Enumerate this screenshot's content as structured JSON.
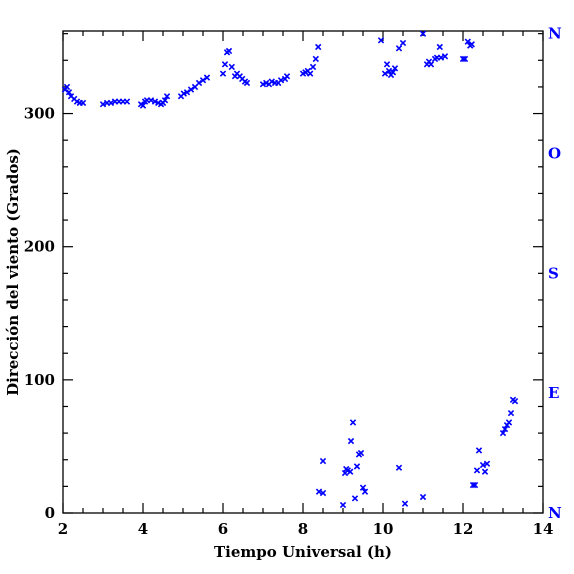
{
  "chart_data": {
    "type": "scatter",
    "xlabel": "Tiempo Universal (h)",
    "ylabel": "Dirección del viento (Grados)",
    "xlim": [
      2,
      14
    ],
    "ylim": [
      0,
      362
    ],
    "x_ticks": [
      2,
      4,
      6,
      8,
      10,
      12,
      14
    ],
    "y_ticks": [
      0,
      100,
      200,
      300
    ],
    "grid": false,
    "marker": "x",
    "marker_color": "#0000ff",
    "compass_axis": {
      "side": "right",
      "color": "#0000ff",
      "labels": [
        {
          "value": 0,
          "label": "N"
        },
        {
          "value": 90,
          "label": "E"
        },
        {
          "value": 180,
          "label": "S"
        },
        {
          "value": 270,
          "label": "O"
        },
        {
          "value": 360,
          "label": "N"
        }
      ]
    },
    "points": [
      [
        2.05,
        318
      ],
      [
        2.1,
        320
      ],
      [
        2.15,
        316
      ],
      [
        2.2,
        313
      ],
      [
        2.28,
        311
      ],
      [
        2.35,
        309
      ],
      [
        2.42,
        308
      ],
      [
        2.5,
        308
      ],
      [
        3.0,
        307
      ],
      [
        3.1,
        308
      ],
      [
        3.2,
        308
      ],
      [
        3.3,
        309
      ],
      [
        3.4,
        309
      ],
      [
        3.5,
        309
      ],
      [
        3.6,
        309
      ],
      [
        3.95,
        307
      ],
      [
        4.0,
        306
      ],
      [
        4.05,
        309
      ],
      [
        4.1,
        310
      ],
      [
        4.2,
        310
      ],
      [
        4.3,
        309
      ],
      [
        4.38,
        308
      ],
      [
        4.45,
        307
      ],
      [
        4.5,
        308
      ],
      [
        4.55,
        310
      ],
      [
        4.6,
        313
      ],
      [
        4.95,
        313
      ],
      [
        5.02,
        315
      ],
      [
        5.1,
        316
      ],
      [
        5.2,
        318
      ],
      [
        5.3,
        320
      ],
      [
        5.4,
        323
      ],
      [
        5.5,
        325
      ],
      [
        5.6,
        327
      ],
      [
        6.0,
        330
      ],
      [
        6.05,
        337
      ],
      [
        6.1,
        346
      ],
      [
        6.15,
        347
      ],
      [
        6.22,
        335
      ],
      [
        6.3,
        328
      ],
      [
        6.35,
        330
      ],
      [
        6.42,
        328
      ],
      [
        6.48,
        326
      ],
      [
        6.55,
        324
      ],
      [
        6.6,
        323
      ],
      [
        7.0,
        322
      ],
      [
        7.08,
        323
      ],
      [
        7.15,
        322
      ],
      [
        7.22,
        324
      ],
      [
        7.3,
        323
      ],
      [
        7.38,
        323
      ],
      [
        7.45,
        325
      ],
      [
        7.55,
        326
      ],
      [
        7.6,
        328
      ],
      [
        8.0,
        330
      ],
      [
        8.06,
        331
      ],
      [
        8.12,
        332
      ],
      [
        8.18,
        330
      ],
      [
        8.25,
        335
      ],
      [
        8.32,
        341
      ],
      [
        8.38,
        350
      ],
      [
        9.95,
        355
      ],
      [
        10.05,
        330
      ],
      [
        10.1,
        337
      ],
      [
        10.15,
        332
      ],
      [
        10.2,
        329
      ],
      [
        10.25,
        331
      ],
      [
        10.3,
        334
      ],
      [
        10.4,
        349
      ],
      [
        10.5,
        353
      ],
      [
        11.0,
        360
      ],
      [
        11.1,
        337
      ],
      [
        11.15,
        339
      ],
      [
        11.2,
        337
      ],
      [
        11.3,
        341
      ],
      [
        11.35,
        342
      ],
      [
        11.42,
        350
      ],
      [
        11.45,
        342
      ],
      [
        11.55,
        343
      ],
      [
        12.0,
        341
      ],
      [
        12.05,
        341
      ],
      [
        12.12,
        354
      ],
      [
        12.18,
        351
      ],
      [
        12.22,
        352
      ],
      [
        8.4,
        16
      ],
      [
        8.5,
        15
      ],
      [
        8.5,
        39
      ],
      [
        9.0,
        6
      ],
      [
        9.05,
        30
      ],
      [
        9.08,
        33
      ],
      [
        9.12,
        32
      ],
      [
        9.18,
        31
      ],
      [
        9.2,
        54
      ],
      [
        9.25,
        68
      ],
      [
        9.3,
        11
      ],
      [
        9.35,
        35
      ],
      [
        9.4,
        44
      ],
      [
        9.45,
        45
      ],
      [
        9.5,
        19
      ],
      [
        9.55,
        16
      ],
      [
        10.4,
        34
      ],
      [
        10.55,
        7
      ],
      [
        11.0,
        12
      ],
      [
        12.25,
        21
      ],
      [
        12.3,
        21
      ],
      [
        12.35,
        32
      ],
      [
        12.4,
        47
      ],
      [
        12.5,
        36
      ],
      [
        12.55,
        31
      ],
      [
        12.6,
        37
      ],
      [
        13.0,
        60
      ],
      [
        13.05,
        63
      ],
      [
        13.1,
        66
      ],
      [
        13.15,
        68
      ],
      [
        13.2,
        75
      ],
      [
        13.25,
        85
      ],
      [
        13.3,
        84
      ]
    ]
  }
}
